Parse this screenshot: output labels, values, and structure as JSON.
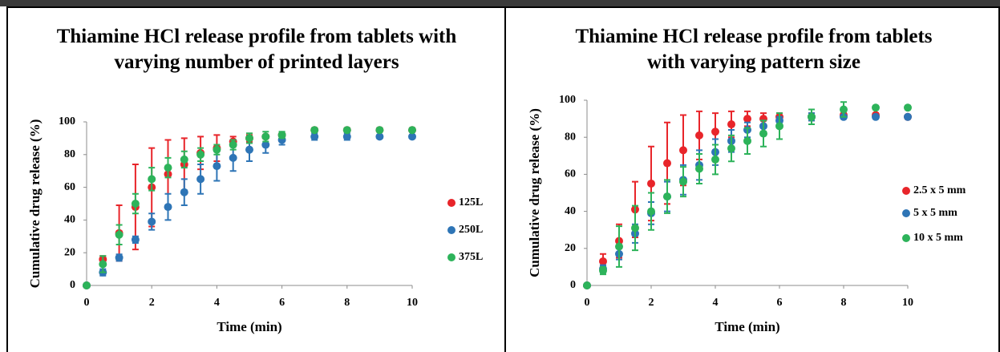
{
  "chart_data": [
    {
      "type": "scatter",
      "title": "Thiamine HCl release profile from tablets with varying number of printed layers",
      "x_label": "Time (min)",
      "y_label": "Cumulative drug release (%)",
      "x": [
        0,
        0.5,
        1,
        1.5,
        2,
        2.5,
        3,
        3.5,
        4,
        4.5,
        5,
        5.5,
        6,
        7,
        8,
        9,
        10
      ],
      "xlim": [
        0,
        10
      ],
      "xticks": [
        0,
        2,
        4,
        6,
        8,
        10
      ],
      "ylim": [
        0,
        100
      ],
      "yticks": [
        0,
        20,
        40,
        60,
        80,
        100
      ],
      "legend": "right",
      "series": [
        {
          "name": "125L",
          "color": "#e8252a",
          "values": [
            0,
            16,
            32,
            48,
            60,
            68,
            74,
            81,
            84,
            88,
            90,
            91,
            92,
            95,
            95,
            95,
            95
          ],
          "errors": [
            0,
            2,
            17,
            26,
            24,
            21,
            16,
            10,
            8,
            3,
            2,
            1,
            1,
            1,
            1,
            1,
            1
          ]
        },
        {
          "name": "250L",
          "color": "#2e75b6",
          "values": [
            0,
            8,
            17,
            28,
            39,
            48,
            57,
            65,
            73,
            78,
            83,
            86,
            89,
            91,
            91,
            91,
            91
          ],
          "errors": [
            0,
            2,
            2,
            2,
            5,
            8,
            8,
            9,
            9,
            8,
            7,
            5,
            3,
            2,
            2,
            1,
            1
          ]
        },
        {
          "name": "375L",
          "color": "#2db35a",
          "values": [
            0,
            13,
            31,
            50,
            65,
            72,
            77,
            80,
            83,
            86,
            90,
            91,
            92,
            95,
            95,
            95,
            95
          ],
          "errors": [
            0,
            5,
            6,
            6,
            7,
            6,
            5,
            4,
            3,
            3,
            3,
            3,
            2,
            1,
            1,
            1,
            1
          ]
        }
      ]
    },
    {
      "type": "scatter",
      "title": "Thiamine HCl release profile from tablets with varying pattern size",
      "x_label": "Time (min)",
      "y_label": "Cumulative drug release (%)",
      "x": [
        0,
        0.5,
        1,
        1.5,
        2,
        2.5,
        3,
        3.5,
        4,
        4.5,
        5,
        5.5,
        6,
        7,
        8,
        9,
        10
      ],
      "xlim": [
        0,
        10
      ],
      "xticks": [
        0,
        2,
        4,
        6,
        8,
        10
      ],
      "ylim": [
        0,
        100
      ],
      "yticks": [
        0,
        20,
        40,
        60,
        80,
        100
      ],
      "legend": "right",
      "series": [
        {
          "name": "2.5 x 5 mm",
          "color": "#e8252a",
          "values": [
            0,
            13,
            24,
            41,
            55,
            66,
            73,
            81,
            83,
            87,
            90,
            90,
            91,
            91,
            92,
            92,
            91
          ],
          "errors": [
            0,
            4,
            9,
            15,
            20,
            22,
            19,
            13,
            10,
            7,
            4,
            3,
            2,
            2,
            1,
            1,
            1
          ]
        },
        {
          "name": "5 x 5 mm",
          "color": "#2e75b6",
          "values": [
            0,
            9,
            17,
            28,
            39,
            48,
            57,
            65,
            72,
            78,
            84,
            86,
            89,
            91,
            91,
            91,
            91
          ],
          "errors": [
            0,
            2,
            3,
            5,
            6,
            8,
            8,
            8,
            7,
            6,
            4,
            3,
            2,
            2,
            1,
            1,
            1
          ]
        },
        {
          "name": "10 x 5 mm",
          "color": "#2db35a",
          "values": [
            0,
            8,
            21,
            31,
            40,
            48,
            56,
            63,
            68,
            74,
            78,
            82,
            86,
            91,
            95,
            96,
            96
          ],
          "errors": [
            0,
            2,
            11,
            12,
            10,
            9,
            8,
            8,
            8,
            7,
            7,
            7,
            7,
            4,
            4,
            1,
            1
          ]
        }
      ]
    }
  ]
}
